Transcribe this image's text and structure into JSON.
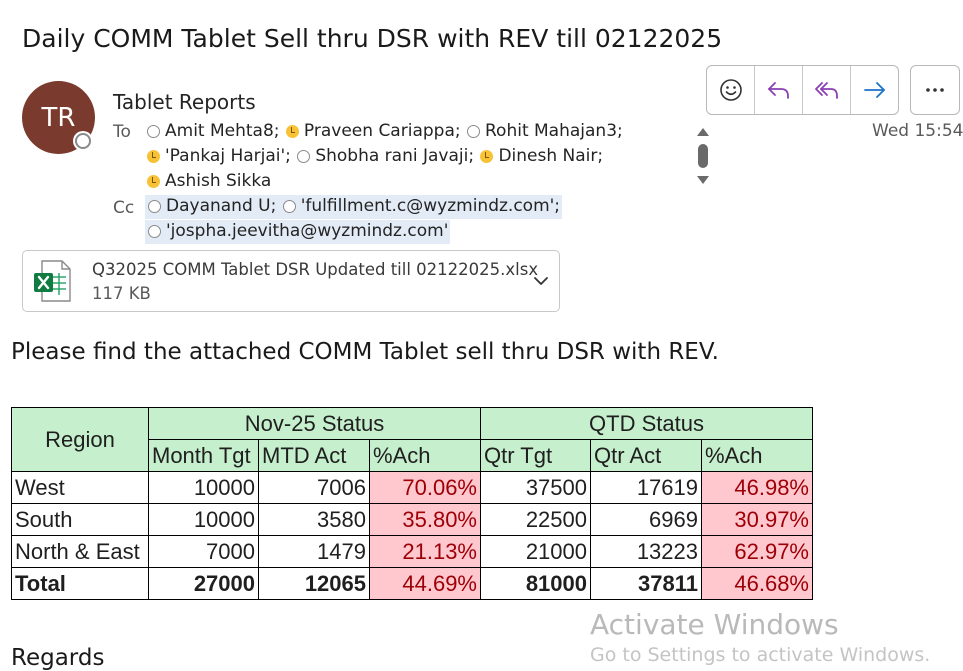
{
  "email": {
    "subject": "Daily COMM Tablet Sell thru DSR with REV till 02122025",
    "avatar_initials": "TR",
    "sender": "Tablet Reports",
    "to_label": "To",
    "cc_label": "Cc",
    "date": "Wed 15:54",
    "to": [
      {
        "name": "Amit Mehta8;",
        "status": "offline"
      },
      {
        "name": "Praveen Cariappa;",
        "status": "away"
      },
      {
        "name": "Rohit Mahajan3;",
        "status": "offline"
      },
      {
        "name": "'Pankaj Harjai';",
        "status": "away"
      },
      {
        "name": "Shobha rani Javaji;",
        "status": "offline"
      },
      {
        "name": "Dinesh Nair;",
        "status": "away"
      },
      {
        "name": "Ashish Sikka",
        "status": "away"
      }
    ],
    "cc": [
      {
        "name": "Dayanand U;",
        "status": "offline"
      },
      {
        "name": "'fulfillment.c@wyzmindz.com';",
        "status": "offline"
      },
      {
        "name": "'jospha.jeevitha@wyzmindz.com'",
        "status": "offline"
      }
    ],
    "attachment": {
      "name": "Q32025 COMM Tablet DSR Updated till 02122025.xlsx",
      "size": "117 KB",
      "icon": "excel-icon"
    },
    "body_text": "Please find the attached COMM Tablet sell thru DSR with REV.",
    "signoff": "Regards"
  },
  "toolbar": {
    "icons": [
      "emoji-icon",
      "reply-icon",
      "reply-all-icon",
      "forward-icon",
      "more-icon"
    ]
  },
  "table": {
    "region_header": "Region",
    "group1": "Nov-25 Status",
    "group2": "QTD Status",
    "cols": [
      "Month Tgt",
      "MTD Act",
      "%Ach",
      "Qtr Tgt",
      "Qtr Act",
      "%Ach"
    ],
    "rows": [
      [
        "West",
        "10000",
        "7006",
        "70.06%",
        "37500",
        "17619",
        "46.98%"
      ],
      [
        "South",
        "10000",
        "3580",
        "35.80%",
        "22500",
        "6969",
        "30.97%"
      ],
      [
        "North & East",
        "7000",
        "1479",
        "21.13%",
        "21000",
        "13223",
        "62.97%"
      ]
    ],
    "total": [
      "Total",
      "27000",
      "12065",
      "44.69%",
      "81000",
      "37811",
      "46.68%"
    ]
  },
  "watermark": {
    "line1": "Activate Windows",
    "line2": "Go to Settings to activate Windows."
  },
  "colors": {
    "header_fill": "#c6efce",
    "pct_fill": "#ffc7ce",
    "pct_text": "#9c0006",
    "avatar": "#7a3b2e",
    "accent_purple": "#8a3fb3",
    "accent_blue": "#1a73c9"
  }
}
